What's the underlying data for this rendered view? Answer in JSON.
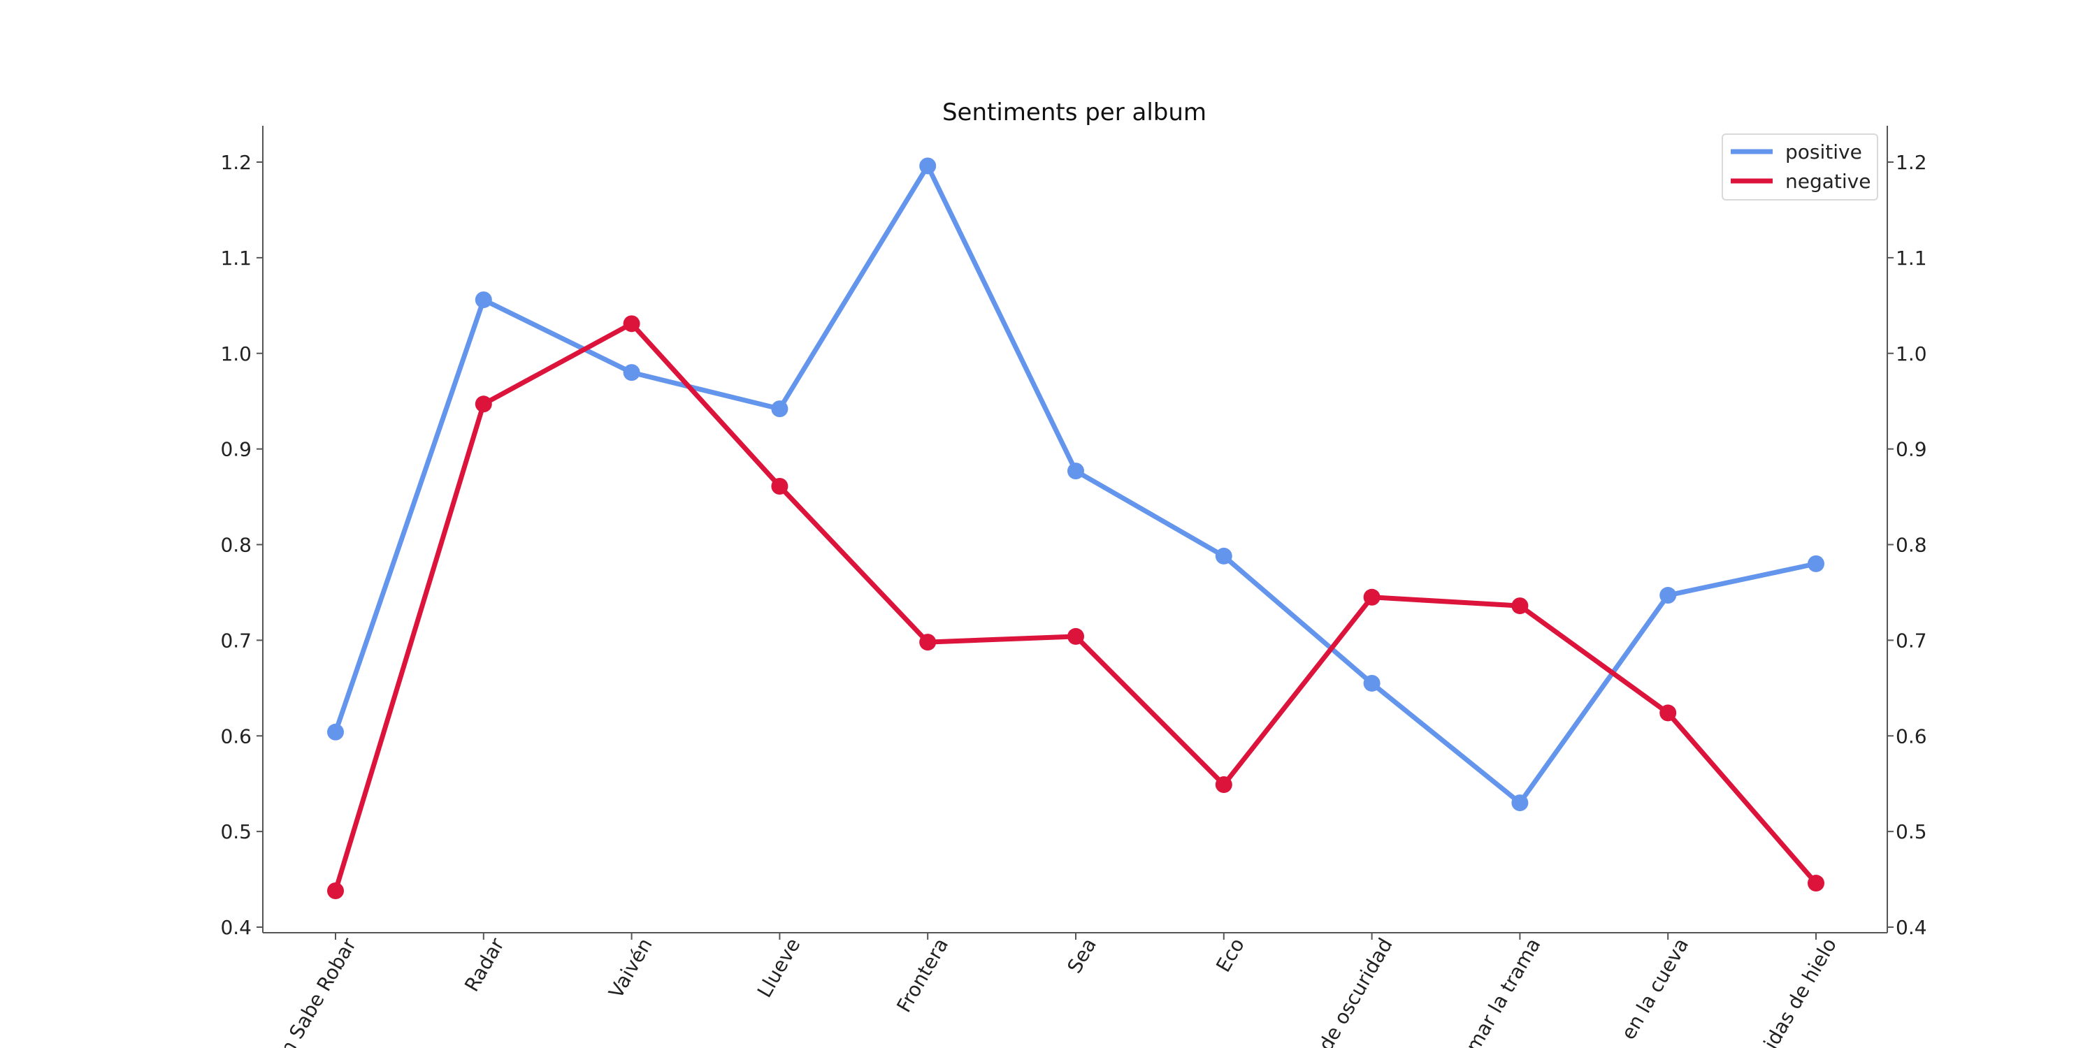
{
  "chart_data": {
    "type": "line",
    "title": "Sentiments per album",
    "xlabel": "",
    "ylabel": "",
    "categories": [
      "Quien Sabe Robar",
      "Radar",
      "Vaivén",
      "Llueve",
      "Frontera",
      "Sea",
      "Eco",
      "de oscuridad",
      "mar la trama",
      "en la cueva",
      "idas de hielo"
    ],
    "ylim": [
      0.4,
      1.24
    ],
    "yticks": [
      "0.4",
      "0.5",
      "0.6",
      "0.7",
      "0.8",
      "0.9",
      "1.0",
      "1.1",
      "1.2"
    ],
    "grid": false,
    "legend_position": "top-right",
    "series": [
      {
        "name": "positive",
        "color": "#6495ED",
        "values": [
          0.604,
          1.056,
          0.98,
          0.942,
          1.196,
          0.877,
          0.788,
          0.655,
          0.53,
          0.747,
          0.78
        ]
      },
      {
        "name": "negative",
        "color": "#DC143C",
        "values": [
          0.438,
          0.947,
          1.031,
          0.861,
          0.698,
          0.704,
          0.549,
          0.745,
          0.736,
          0.624,
          0.446
        ]
      }
    ]
  }
}
